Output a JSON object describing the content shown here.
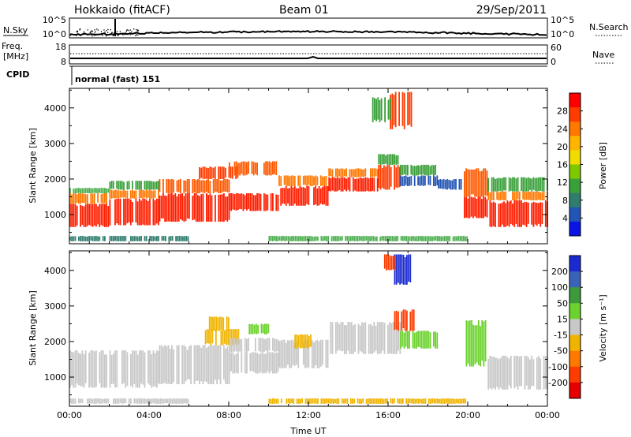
{
  "header": {
    "station": "Hokkaido (fitACF)",
    "beam": "Beam 01",
    "date": "29/Sep/2011"
  },
  "strip_panels": {
    "nsky": {
      "label": "N.Sky",
      "left_ticks": [
        "10^5",
        "10^0"
      ],
      "right_ticks": [
        "10^5",
        "10^0"
      ],
      "right_label": "N.Search"
    },
    "freq": {
      "label_top": "Freq.",
      "label_bottom": "[MHz]",
      "left_ticks": [
        "18",
        "8"
      ],
      "right_ticks": [
        "60",
        "0"
      ],
      "right_label": "Nave"
    },
    "cpid": {
      "label": "CPID",
      "value": "normal (fast) 151"
    }
  },
  "chart_data": [
    {
      "type": "heatmap",
      "name": "power",
      "ylabel": "Slant Range [km]",
      "xlabel": "Time UT",
      "x_ticks": [
        "00:00",
        "04:00",
        "08:00",
        "12:00",
        "16:00",
        "20:00",
        "00:00"
      ],
      "y_ticks": [
        "1000",
        "2000",
        "3000",
        "4000"
      ],
      "xlim": [
        0,
        24
      ],
      "ylim": [
        180,
        4550
      ],
      "colorbar": {
        "label": "Power [dB]",
        "ticks": [
          "28",
          "24",
          "20",
          "16",
          "12",
          "8",
          "4"
        ],
        "colors": [
          "#ff0000",
          "#ff3c00",
          "#ff7800",
          "#ffb400",
          "#f0dc00",
          "#7ec800",
          "#3aa03a",
          "#2f7d6e",
          "#2255b5",
          "#0a14e6"
        ]
      },
      "bands": [
        {
          "x0": 0.0,
          "x1": 2.0,
          "y0": 650,
          "y1": 1300,
          "color": "#ff1e00"
        },
        {
          "x0": 0.0,
          "x1": 2.0,
          "y0": 1300,
          "y1": 1600,
          "color": "#ff7800"
        },
        {
          "x0": 0.0,
          "x1": 2.0,
          "y0": 1600,
          "y1": 1750,
          "color": "#4caf50"
        },
        {
          "x0": 2.0,
          "x1": 4.5,
          "y0": 700,
          "y1": 1450,
          "color": "#ff1e00"
        },
        {
          "x0": 2.0,
          "x1": 4.5,
          "y0": 1450,
          "y1": 1700,
          "color": "#ff7800"
        },
        {
          "x0": 2.0,
          "x1": 4.5,
          "y0": 1700,
          "y1": 1950,
          "color": "#3aa03a"
        },
        {
          "x0": 4.5,
          "x1": 8.0,
          "y0": 800,
          "y1": 1600,
          "color": "#ff1e00"
        },
        {
          "x0": 4.5,
          "x1": 8.0,
          "y0": 1600,
          "y1": 2000,
          "color": "#ff5a00"
        },
        {
          "x0": 6.5,
          "x1": 8.5,
          "y0": 2000,
          "y1": 2350,
          "color": "#ff3c00"
        },
        {
          "x0": 8.0,
          "x1": 10.5,
          "y0": 1100,
          "y1": 1600,
          "color": "#ff1e00"
        },
        {
          "x0": 8.0,
          "x1": 10.5,
          "y0": 2100,
          "y1": 2500,
          "color": "#ff5a00"
        },
        {
          "x0": 10.5,
          "x1": 13.0,
          "y0": 1250,
          "y1": 1800,
          "color": "#ff1e00"
        },
        {
          "x0": 10.5,
          "x1": 13.0,
          "y0": 1800,
          "y1": 2100,
          "color": "#ff7800"
        },
        {
          "x0": 13.0,
          "x1": 15.5,
          "y0": 1650,
          "y1": 2050,
          "color": "#ff1e00"
        },
        {
          "x0": 13.0,
          "x1": 15.5,
          "y0": 2050,
          "y1": 2300,
          "color": "#ff7800"
        },
        {
          "x0": 15.5,
          "x1": 16.6,
          "y0": 1700,
          "y1": 2400,
          "color": "#ff3c00"
        },
        {
          "x0": 15.5,
          "x1": 16.6,
          "y0": 2400,
          "y1": 2700,
          "color": "#3aa03a"
        },
        {
          "x0": 16.6,
          "x1": 18.5,
          "y0": 1800,
          "y1": 2100,
          "color": "#2255b5"
        },
        {
          "x0": 16.6,
          "x1": 18.5,
          "y0": 2100,
          "y1": 2400,
          "color": "#3aa03a"
        },
        {
          "x0": 18.5,
          "x1": 19.8,
          "y0": 1700,
          "y1": 2000,
          "color": "#2255b5"
        },
        {
          "x0": 19.8,
          "x1": 21.0,
          "y0": 900,
          "y1": 1500,
          "color": "#ff1e00"
        },
        {
          "x0": 19.8,
          "x1": 21.0,
          "y0": 1500,
          "y1": 2300,
          "color": "#ff5a00"
        },
        {
          "x0": 21.0,
          "x1": 24.0,
          "y0": 650,
          "y1": 1400,
          "color": "#ff1e00"
        },
        {
          "x0": 21.0,
          "x1": 24.0,
          "y0": 1400,
          "y1": 1650,
          "color": "#ff7800"
        },
        {
          "x0": 21.0,
          "x1": 24.0,
          "y0": 1650,
          "y1": 2050,
          "color": "#3aa03a"
        },
        {
          "x0": 16.0,
          "x1": 17.2,
          "y0": 3400,
          "y1": 4450,
          "color": "#ff3c00"
        },
        {
          "x0": 15.2,
          "x1": 16.2,
          "y0": 3600,
          "y1": 4300,
          "color": "#3aa03a"
        },
        {
          "x0": 10.0,
          "x1": 20.0,
          "y0": 250,
          "y1": 400,
          "color": "#4caf50"
        },
        {
          "x0": 0.0,
          "x1": 6.0,
          "y0": 250,
          "y1": 400,
          "color": "#2f7d6e"
        }
      ]
    },
    {
      "type": "heatmap",
      "name": "velocity",
      "ylabel": "Slant Range [km]",
      "xlabel": "Time UT",
      "x_ticks": [
        "00:00",
        "04:00",
        "08:00",
        "12:00",
        "16:00",
        "20:00",
        "00:00"
      ],
      "y_ticks": [
        "1000",
        "2000",
        "3000",
        "4000"
      ],
      "xlim": [
        0,
        24
      ],
      "ylim": [
        180,
        4550
      ],
      "colorbar": {
        "label": "Velocity [m s⁻¹]",
        "ticks": [
          "200",
          "100",
          "50",
          "15",
          "-15",
          "-50",
          "-100",
          "-200"
        ],
        "colors": [
          "#1a2acf",
          "#3a63b8",
          "#3c9a3c",
          "#6cd22e",
          "#c8c8c8",
          "#f0b400",
          "#ff7800",
          "#ff3c00",
          "#e60000"
        ]
      },
      "bands": [
        {
          "x0": 0.0,
          "x1": 4.5,
          "y0": 700,
          "y1": 1750,
          "color": "#c8c8c8"
        },
        {
          "x0": 4.5,
          "x1": 8.0,
          "y0": 800,
          "y1": 1900,
          "color": "#c8c8c8"
        },
        {
          "x0": 6.8,
          "x1": 8.5,
          "y0": 1900,
          "y1": 2350,
          "color": "#f0b400"
        },
        {
          "x0": 8.0,
          "x1": 10.5,
          "y0": 1100,
          "y1": 1700,
          "color": "#c8c8c8"
        },
        {
          "x0": 8.0,
          "x1": 10.5,
          "y0": 1700,
          "y1": 2100,
          "color": "#c8c8c8"
        },
        {
          "x0": 10.5,
          "x1": 13.0,
          "y0": 1250,
          "y1": 2050,
          "color": "#c8c8c8"
        },
        {
          "x0": 11.3,
          "x1": 12.2,
          "y0": 1800,
          "y1": 2200,
          "color": "#f0b400"
        },
        {
          "x0": 13.0,
          "x1": 16.6,
          "y0": 1650,
          "y1": 2550,
          "color": "#c8c8c8"
        },
        {
          "x0": 16.3,
          "x1": 17.3,
          "y0": 2300,
          "y1": 2900,
          "color": "#ff3c00"
        },
        {
          "x0": 16.6,
          "x1": 18.5,
          "y0": 1800,
          "y1": 2300,
          "color": "#6cd22e"
        },
        {
          "x0": 19.9,
          "x1": 20.9,
          "y0": 1300,
          "y1": 2600,
          "color": "#6cd22e"
        },
        {
          "x0": 21.0,
          "x1": 24.0,
          "y0": 650,
          "y1": 1600,
          "color": "#c8c8c8"
        },
        {
          "x0": 16.3,
          "x1": 17.1,
          "y0": 3600,
          "y1": 4450,
          "color": "#1a2acf"
        },
        {
          "x0": 15.8,
          "x1": 16.4,
          "y0": 4000,
          "y1": 4450,
          "color": "#ff3c00"
        },
        {
          "x0": 10.0,
          "x1": 20.0,
          "y0": 250,
          "y1": 400,
          "color": "#f0b400"
        },
        {
          "x0": 0.0,
          "x1": 6.0,
          "y0": 250,
          "y1": 400,
          "color": "#c8c8c8"
        },
        {
          "x0": 7.0,
          "x1": 8.0,
          "y0": 2300,
          "y1": 2700,
          "color": "#f0b400"
        },
        {
          "x0": 9.0,
          "x1": 10.0,
          "y0": 2200,
          "y1": 2500,
          "color": "#6cd22e"
        }
      ]
    }
  ]
}
